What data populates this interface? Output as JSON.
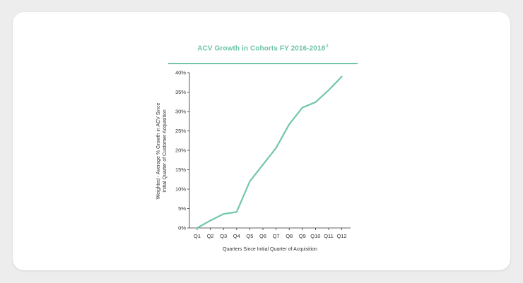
{
  "chart_data": {
    "type": "line",
    "title": "ACV Growth in Cohorts FY 2016-2018",
    "title_superscript": "2",
    "xlabel": "Quarters Since Initial Quarter of Acquisition",
    "ylabel_lines": [
      "Weighted - Average % Growth in ACV Since",
      "Initial Quarter of Customer Acquisition"
    ],
    "categories": [
      "Q1",
      "Q2",
      "Q3",
      "Q4",
      "Q5",
      "Q6",
      "Q7",
      "Q8",
      "Q9",
      "Q10",
      "Q11",
      "Q12"
    ],
    "series": [
      {
        "name": "ACV Growth",
        "values": [
          0,
          1.9,
          3.6,
          4.1,
          12.0,
          16.3,
          20.6,
          26.7,
          31.0,
          32.4,
          35.5,
          39.0
        ]
      }
    ],
    "ylim": [
      0,
      40
    ],
    "yticks": [
      0,
      5,
      10,
      15,
      20,
      25,
      30,
      35,
      40
    ],
    "ytick_labels": [
      "0%",
      "5%",
      "10%",
      "15%",
      "20%",
      "25%",
      "30%",
      "35%",
      "40%"
    ],
    "colors": {
      "line": "#72c6a7",
      "title": "#6cc4a8",
      "axis": "#333333",
      "text": "#333333"
    }
  }
}
